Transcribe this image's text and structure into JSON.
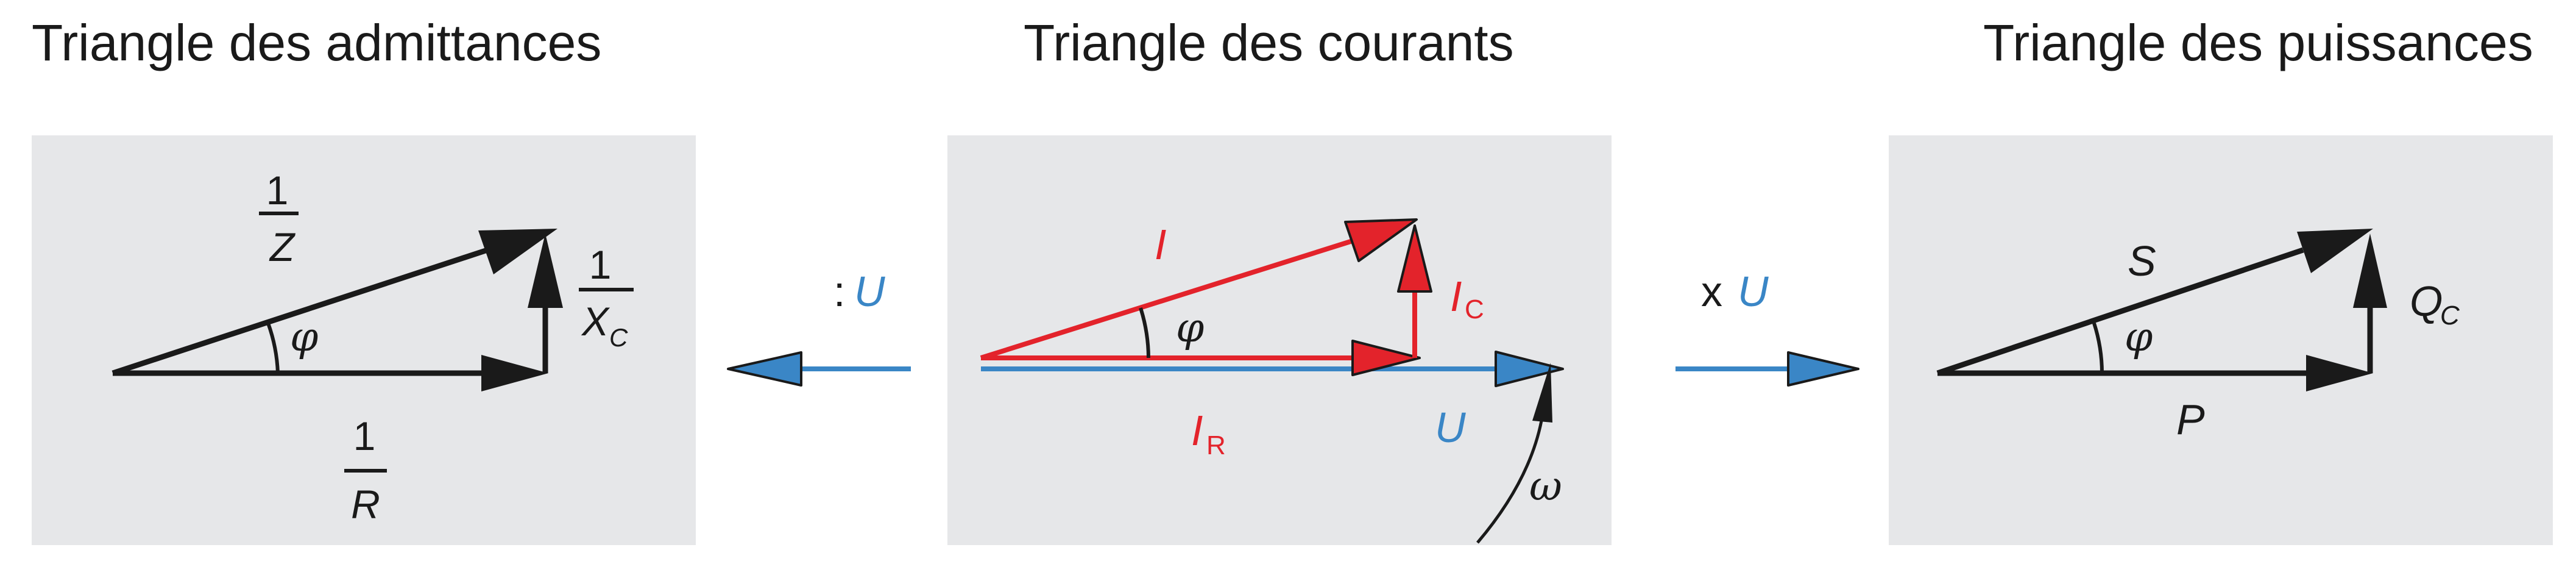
{
  "titles": {
    "admittances": "Triangle des admittances",
    "courants": "Triangle des courants",
    "puissances": "Triangle des puissances"
  },
  "admittances": {
    "z_num": "1",
    "z_den": "Z",
    "x_num": "1",
    "x_den": "X",
    "x_sub": "C",
    "r_num": "1",
    "r_den": "R",
    "angle": "φ"
  },
  "courants": {
    "I": "I",
    "IC": "I",
    "IC_sub": "C",
    "IR": "I",
    "IR_sub": "R",
    "U": "U",
    "omega": "ω",
    "angle": "φ"
  },
  "puissances": {
    "S": "S",
    "Q": "Q",
    "Q_sub": "C",
    "P": "P",
    "angle": "φ"
  },
  "operations": {
    "divide_symbol": ":",
    "divide_var": "U",
    "multiply_symbol": "x",
    "multiply_var": "U"
  },
  "colors": {
    "panel": "#e6e7e9",
    "black": "#1a1a1a",
    "red": "#e3232b",
    "blue": "#3a86c6"
  }
}
